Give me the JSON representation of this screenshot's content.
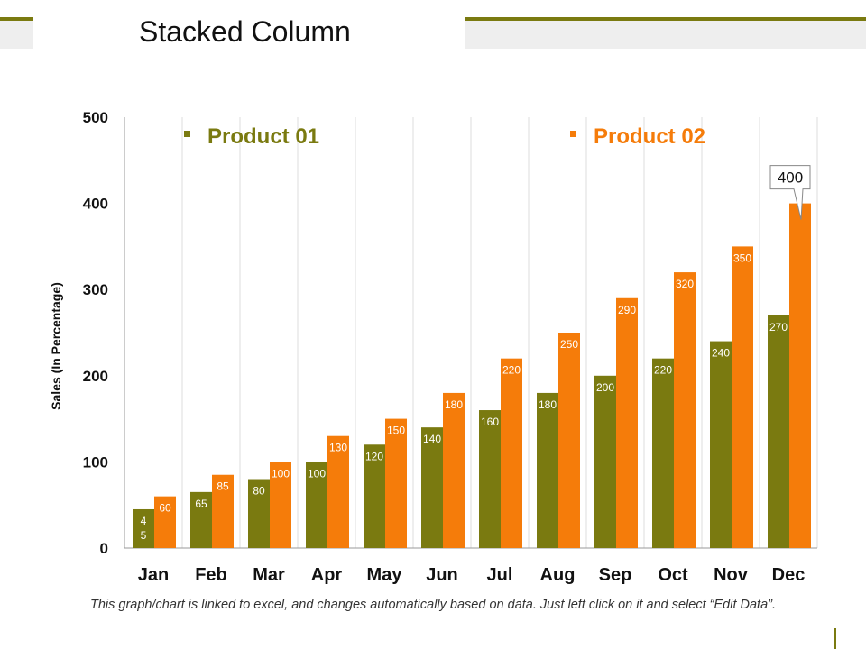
{
  "slide": {
    "title": "Stacked Column",
    "footnote": "This graph/chart is linked to excel, and changes automatically based on data. Just left click on it and select “Edit Data”."
  },
  "colors": {
    "accent": "#7a7a10",
    "product01": "#7a7a10",
    "product02": "#f57c0a",
    "grid": "#dddddd"
  },
  "chart_data": {
    "type": "bar",
    "title": "",
    "ylabel": "Sales  (In Percentage)",
    "xlabel": "",
    "ylim": [
      0,
      500
    ],
    "yticks": [
      0,
      100,
      200,
      300,
      400,
      500
    ],
    "grid": "vertical",
    "legend": "top",
    "categories": [
      "Jan",
      "Feb",
      "Mar",
      "Apr",
      "May",
      "Jun",
      "Jul",
      "Aug",
      "Sep",
      "Oct",
      "Nov",
      "Dec"
    ],
    "series": [
      {
        "name": "Product 01",
        "values": [
          45,
          65,
          80,
          100,
          120,
          140,
          160,
          180,
          200,
          220,
          240,
          270
        ]
      },
      {
        "name": "Product 02",
        "values": [
          60,
          85,
          100,
          130,
          150,
          180,
          220,
          250,
          290,
          320,
          350,
          400
        ]
      }
    ],
    "callout": "400"
  }
}
